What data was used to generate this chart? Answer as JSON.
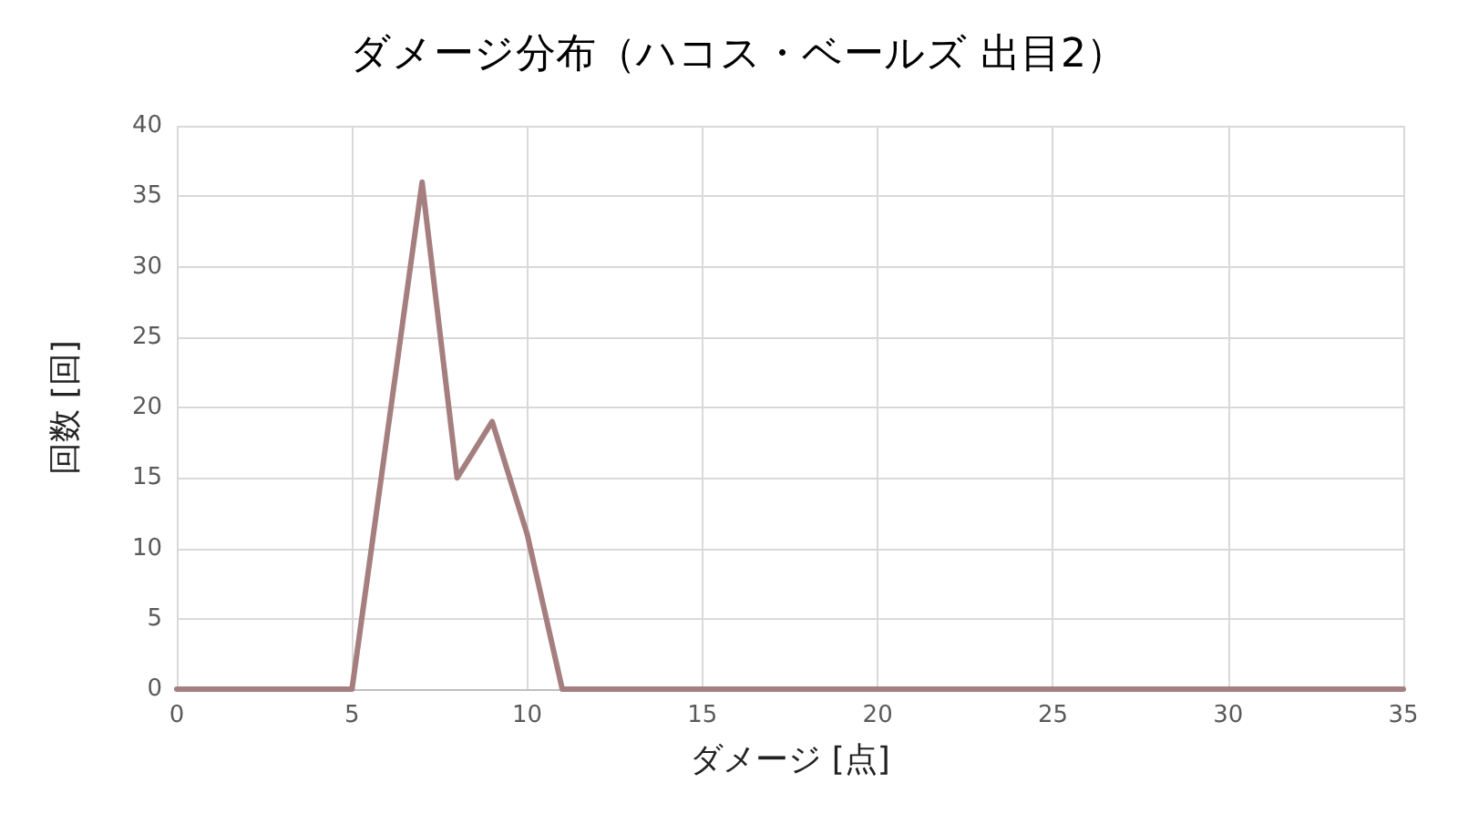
{
  "chart_data": {
    "type": "line",
    "title": "ダメージ分布（ハコス・ベールズ 出目2）",
    "xlabel": "ダメージ [点]",
    "ylabel": "回数 [回]",
    "x": [
      0,
      1,
      2,
      3,
      4,
      5,
      6,
      7,
      8,
      9,
      10,
      11,
      12,
      13,
      14,
      15,
      16,
      17,
      18,
      19,
      20,
      21,
      22,
      23,
      24,
      25,
      26,
      27,
      28,
      29,
      30,
      31,
      32,
      33,
      34,
      35
    ],
    "series": [
      {
        "color": "#a57f7f",
        "values": [
          0,
          0,
          0,
          0,
          0,
          0,
          18,
          36,
          15,
          19,
          11,
          0,
          0,
          0,
          0,
          0,
          0,
          0,
          0,
          0,
          0,
          0,
          0,
          0,
          0,
          0,
          0,
          0,
          0,
          0,
          0,
          0,
          0,
          0,
          0,
          0
        ]
      }
    ],
    "xlim": [
      0,
      35
    ],
    "xticks": [
      0,
      5,
      10,
      15,
      20,
      25,
      30,
      35
    ],
    "ylim": [
      0,
      40
    ],
    "yticks": [
      0,
      5,
      10,
      15,
      20,
      25,
      30,
      35,
      40
    ],
    "grid": true,
    "marker": "none",
    "line_style": "solid"
  }
}
